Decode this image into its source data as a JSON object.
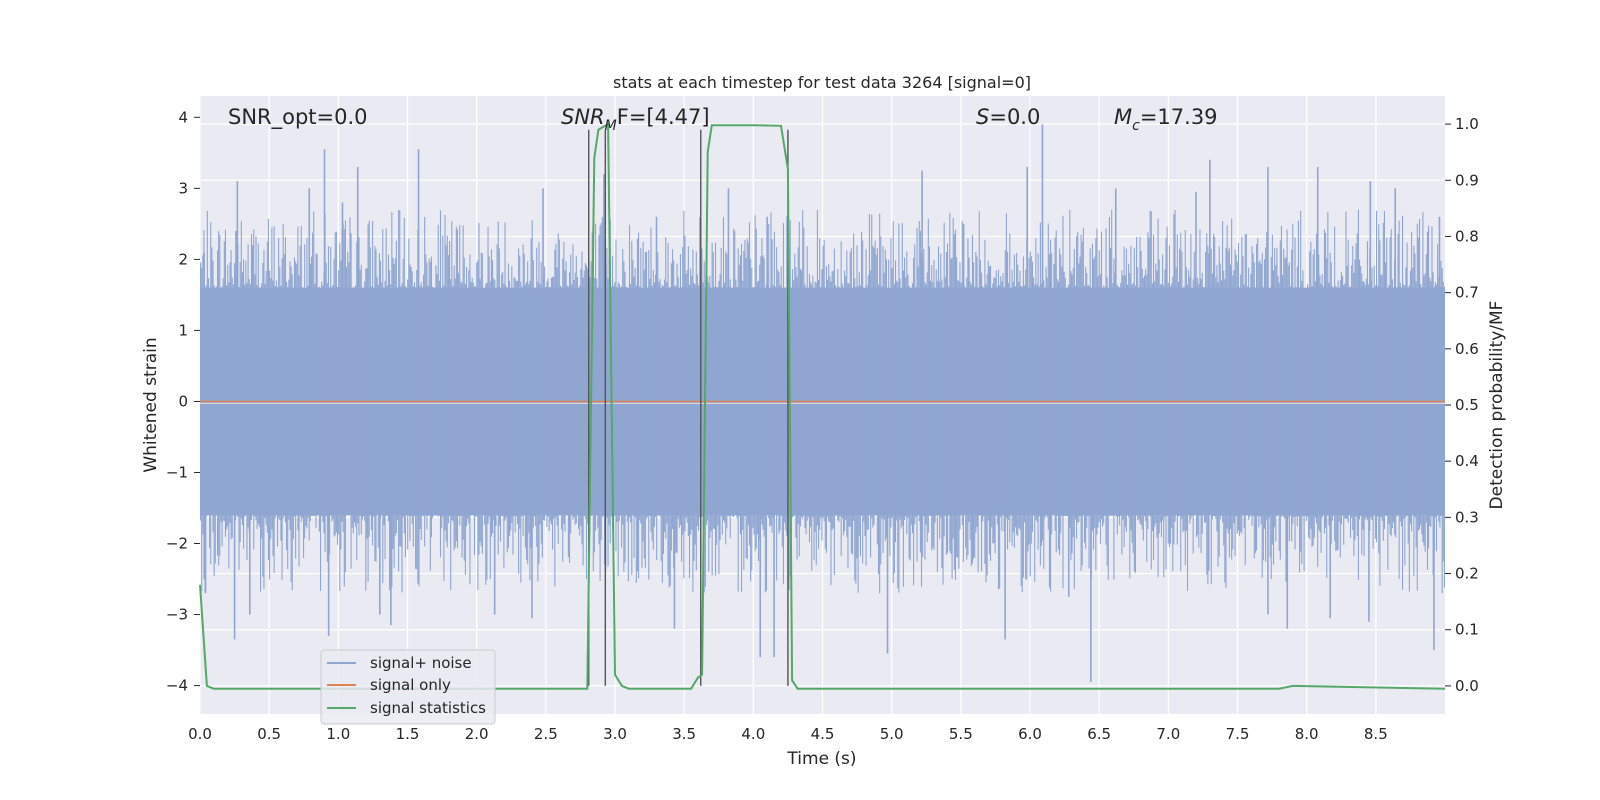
{
  "chart_data": {
    "type": "line",
    "title": "stats at each timestep for test data 3264 [signal=0]",
    "xlabel": "Time (s)",
    "ylabel": "Whitened strain",
    "y2label": "Detection probability/MF",
    "xlim": [
      0,
      9
    ],
    "ylim": [
      -4.4,
      4.3
    ],
    "y2lim": [
      -0.05,
      1.05
    ],
    "xticks": [
      "0.0",
      "0.5",
      "1.0",
      "1.5",
      "2.0",
      "2.5",
      "3.0",
      "3.5",
      "4.0",
      "4.5",
      "5.0",
      "5.5",
      "6.0",
      "6.5",
      "7.0",
      "7.5",
      "8.0",
      "8.5"
    ],
    "yticks": [
      "4",
      "3",
      "2",
      "1",
      "0",
      "−1",
      "−2",
      "−3",
      "−4"
    ],
    "y2ticks": [
      "1.0",
      "0.9",
      "0.8",
      "0.7",
      "0.6",
      "0.5",
      "0.4",
      "0.3",
      "0.2",
      "0.1",
      "0.0"
    ],
    "grid": true,
    "legend_position": "lower-left",
    "legend": [
      {
        "label": "signal+ noise",
        "color": "#8fa6d1"
      },
      {
        "label": "signal only",
        "color": "#dd8452"
      },
      {
        "label": "signal statistics",
        "color": "#55a868"
      }
    ],
    "annotations": {
      "snr_opt_label": "SNR_opt=0.0",
      "snr_mf_sym": "SNR",
      "snr_mf_sub": "M",
      "snr_mf_rest": "F=[4.47]",
      "s_sym": "S",
      "s_rest": "=0.0",
      "mc_sym": "M",
      "mc_sub": "c",
      "mc_rest": "=17.39"
    },
    "colors": {
      "background": "#eaeaf2",
      "grid": "#ffffff",
      "noise": "#8fa6d1",
      "signal": "#dd8452",
      "statistics": "#55a868",
      "event_lines": "#555555"
    },
    "series": [
      {
        "name": "signal+ noise",
        "kind": "noise-envelope",
        "band": [
          -1.6,
          1.6
        ],
        "peaks_upper": [
          [
            0.03,
            2.1
          ],
          [
            0.26,
            2.4
          ],
          [
            0.27,
            3.1
          ],
          [
            0.38,
            2.2
          ],
          [
            0.79,
            3.0
          ],
          [
            0.9,
            3.55
          ],
          [
            1.03,
            2.8
          ],
          [
            1.14,
            3.3
          ],
          [
            1.58,
            3.55
          ],
          [
            2.48,
            3.0
          ],
          [
            2.92,
            3.2
          ],
          [
            3.3,
            2.6
          ],
          [
            3.82,
            3.0
          ],
          [
            4.1,
            2.6
          ],
          [
            5.22,
            3.25
          ],
          [
            5.52,
            2.5
          ],
          [
            5.98,
            3.3
          ],
          [
            6.09,
            3.9
          ],
          [
            6.62,
            3.0
          ],
          [
            7.2,
            2.95
          ],
          [
            7.3,
            3.4
          ],
          [
            7.72,
            3.3
          ],
          [
            8.08,
            3.3
          ],
          [
            8.46,
            3.1
          ],
          [
            8.64,
            3.0
          ],
          [
            8.96,
            2.6
          ]
        ],
        "peaks_lower": [
          [
            0.04,
            -2.7
          ],
          [
            0.25,
            -3.35
          ],
          [
            0.36,
            -3.0
          ],
          [
            0.93,
            -3.3
          ],
          [
            1.3,
            -3.0
          ],
          [
            1.38,
            -3.15
          ],
          [
            2.13,
            -3.0
          ],
          [
            2.4,
            -3.05
          ],
          [
            3.43,
            -3.2
          ],
          [
            4.05,
            -3.6
          ],
          [
            4.15,
            -3.6
          ],
          [
            4.97,
            -3.55
          ],
          [
            5.82,
            -3.35
          ],
          [
            6.28,
            -2.75
          ],
          [
            6.44,
            -3.95
          ],
          [
            7.72,
            -3.0
          ],
          [
            7.86,
            -3.2
          ],
          [
            8.17,
            -3.05
          ],
          [
            8.45,
            -3.1
          ],
          [
            8.92,
            -3.5
          ]
        ]
      },
      {
        "name": "signal only",
        "x": [
          0,
          9
        ],
        "y": [
          0,
          0
        ]
      },
      {
        "name": "signal statistics",
        "axis": "right",
        "x": [
          0.0,
          0.05,
          0.1,
          0.2,
          2.8,
          2.85,
          2.88,
          2.95,
          3.0,
          3.05,
          3.1,
          3.55,
          3.6,
          3.63,
          3.67,
          3.7,
          3.75,
          4.0,
          4.2,
          4.25,
          4.28,
          4.32,
          4.4,
          7.8,
          7.9,
          9.0
        ],
        "y": [
          0.18,
          0.0,
          -0.005,
          -0.005,
          -0.005,
          0.94,
          0.99,
          1.0,
          0.02,
          0.0,
          -0.005,
          -0.005,
          0.015,
          0.02,
          0.95,
          0.998,
          0.998,
          0.998,
          0.997,
          0.92,
          0.01,
          -0.005,
          -0.005,
          -0.005,
          0.0,
          -0.005
        ]
      }
    ],
    "event_lines_x": [
      2.81,
      2.93,
      3.62,
      4.25
    ]
  }
}
